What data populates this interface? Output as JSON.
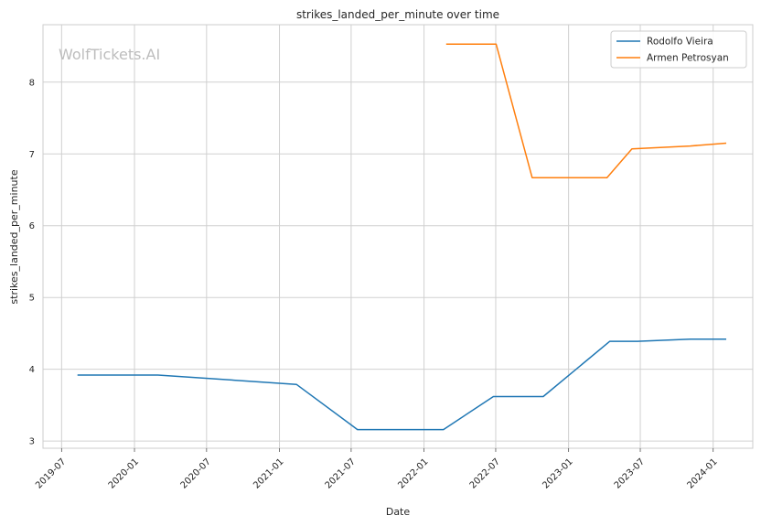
{
  "watermark": "WolfTickets.AI",
  "colors": {
    "rodolfo": "#1f77b4",
    "armen": "#ff7f0e",
    "grid": "#d0d0d0",
    "frame": "#cccccc"
  },
  "chart_data": {
    "type": "line",
    "title": "strikes_landed_per_minute over time",
    "xlabel": "Date",
    "ylabel": "strikes_landed_per_minute",
    "ylim": [
      2.9,
      8.8
    ],
    "xlim": [
      "2019-05-15",
      "2024-04-10"
    ],
    "grid": true,
    "legend": "top-right",
    "x_ticks": [
      "2019-07",
      "2020-01",
      "2020-07",
      "2021-01",
      "2021-07",
      "2022-01",
      "2022-07",
      "2023-01",
      "2023-07",
      "2024-01"
    ],
    "y_ticks": [
      3,
      4,
      5,
      6,
      7,
      8
    ],
    "series": [
      {
        "name": "Rodolfo Vieira",
        "color": "#1f77b4",
        "points": [
          {
            "x": "2019-08-10",
            "y": 3.92
          },
          {
            "x": "2020-02-29",
            "y": 3.92
          },
          {
            "x": "2021-02-13",
            "y": 3.79
          },
          {
            "x": "2021-07-17",
            "y": 3.16
          },
          {
            "x": "2022-02-19",
            "y": 3.16
          },
          {
            "x": "2022-06-25",
            "y": 3.62
          },
          {
            "x": "2022-10-29",
            "y": 3.62
          },
          {
            "x": "2023-04-15",
            "y": 4.39
          },
          {
            "x": "2023-06-24",
            "y": 4.39
          },
          {
            "x": "2023-11-04",
            "y": 4.42
          },
          {
            "x": "2024-02-03",
            "y": 4.42
          }
        ]
      },
      {
        "name": "Armen Petrosyan",
        "color": "#ff7f0e",
        "points": [
          {
            "x": "2022-02-26",
            "y": 8.53
          },
          {
            "x": "2022-07-02",
            "y": 8.53
          },
          {
            "x": "2022-10-01",
            "y": 6.67
          },
          {
            "x": "2023-04-08",
            "y": 6.67
          },
          {
            "x": "2023-06-10",
            "y": 7.07
          },
          {
            "x": "2023-11-04",
            "y": 7.11
          },
          {
            "x": "2024-02-03",
            "y": 7.15
          }
        ]
      }
    ]
  }
}
